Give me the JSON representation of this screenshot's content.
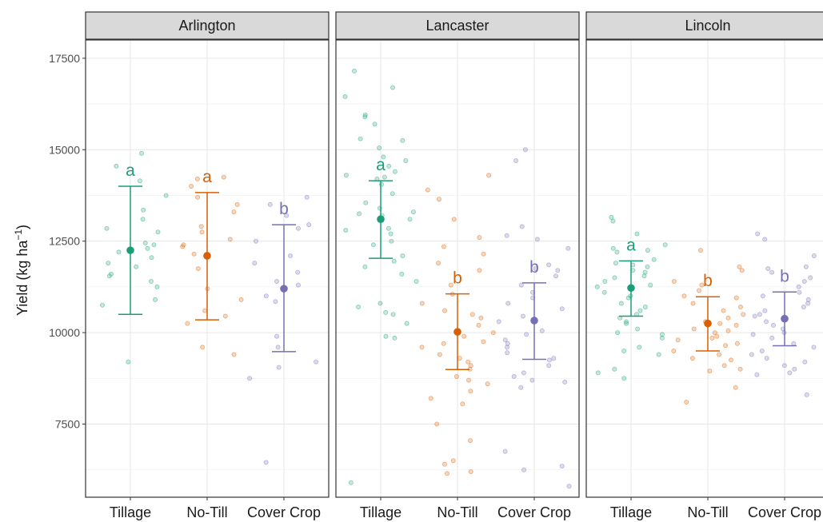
{
  "chart_data": {
    "type": "scatter",
    "ylabel": "Yield (kg ha",
    "ylabel_sup": "−1",
    "ylabel_close": ")",
    "ylim": [
      5500,
      18000
    ],
    "y_ticks": [
      7500,
      10000,
      12500,
      15000,
      17500
    ],
    "y_tick_labels": [
      "7500",
      "10000",
      "12500",
      "15000",
      "17500"
    ],
    "categories": [
      "Tillage",
      "No-Till",
      "Cover Crop"
    ],
    "colors": {
      "Tillage": "#1b9e77",
      "No-Till": "#d95f02",
      "Cover Crop": "#7570b3"
    },
    "grid": true,
    "panels": [
      {
        "name": "Arlington",
        "summary": [
          {
            "category": "Tillage",
            "mean": 12250,
            "lower": 10500,
            "upper": 14000,
            "letter": "a"
          },
          {
            "category": "No-Till",
            "mean": 12100,
            "lower": 10350,
            "upper": 13830,
            "letter": "a"
          },
          {
            "category": "Cover Crop",
            "mean": 11200,
            "lower": 9480,
            "upper": 12950,
            "letter": "b"
          }
        ],
        "points": {
          "Tillage": [
            14900,
            14550,
            14150,
            13750,
            13350,
            13100,
            12850,
            12750,
            12450,
            12400,
            12300,
            12200,
            12050,
            11900,
            11800,
            11600,
            11550,
            11400,
            11250,
            10900,
            10750,
            9200
          ],
          "No-Till": [
            14250,
            14200,
            14000,
            13700,
            13500,
            13300,
            12900,
            12750,
            12550,
            12400,
            12350,
            12150,
            11750,
            11200,
            10900,
            10600,
            10450,
            10250,
            9600,
            9400
          ],
          "Cover Crop": [
            13700,
            13500,
            13200,
            12950,
            12850,
            12500,
            12100,
            11900,
            11650,
            11400,
            11300,
            11000,
            10850,
            9900,
            9600,
            9200,
            9050,
            8750,
            6450
          ]
        }
      },
      {
        "name": "Lancaster",
        "summary": [
          {
            "category": "Tillage",
            "mean": 13100,
            "lower": 12030,
            "upper": 14150,
            "letter": "a"
          },
          {
            "category": "No-Till",
            "mean": 10020,
            "lower": 8990,
            "upper": 11060,
            "letter": "b"
          },
          {
            "category": "Cover Crop",
            "mean": 10330,
            "lower": 9270,
            "upper": 11360,
            "letter": "b"
          }
        ],
        "points": {
          "Tillage": [
            17150,
            16700,
            16450,
            15950,
            15900,
            15700,
            15300,
            15250,
            15050,
            14800,
            14700,
            14550,
            14400,
            14300,
            14250,
            14200,
            14050,
            13800,
            13550,
            13400,
            13300,
            13250,
            13200,
            13100,
            12850,
            12800,
            12700,
            12500,
            12400,
            12100,
            11950,
            11800,
            11600,
            11400,
            10800,
            10700,
            10550,
            10500,
            10250,
            9900,
            9850,
            5900
          ],
          "No-Till": [
            14300,
            13900,
            13650,
            13100,
            12600,
            12350,
            12150,
            11900,
            11700,
            11300,
            11050,
            10800,
            10600,
            10500,
            10400,
            10200,
            10000,
            9900,
            9750,
            9700,
            9600,
            9400,
            9300,
            9200,
            9100,
            9000,
            8800,
            8700,
            8600,
            8400,
            8200,
            8050,
            7500,
            7050,
            6500,
            6400,
            6200,
            6150
          ],
          "Cover Crop": [
            15000,
            14700,
            12900,
            12650,
            12550,
            12300,
            11850,
            11750,
            11700,
            11550,
            11300,
            11100,
            10950,
            10800,
            10650,
            10450,
            10300,
            10050,
            9950,
            9800,
            9700,
            9600,
            9450,
            9300,
            9250,
            9100,
            8900,
            8800,
            8700,
            8650,
            8500,
            6750,
            6350,
            6250,
            5800
          ]
        }
      },
      {
        "name": "Lincoln",
        "summary": [
          {
            "category": "Tillage",
            "mean": 11220,
            "lower": 10450,
            "upper": 11960,
            "letter": "a"
          },
          {
            "category": "No-Till",
            "mean": 10250,
            "lower": 9500,
            "upper": 10980,
            "letter": "b"
          },
          {
            "category": "Cover Crop",
            "mean": 10380,
            "lower": 9640,
            "upper": 11110,
            "letter": "b"
          }
        ],
        "points": {
          "Tillage": [
            13150,
            13050,
            12700,
            12400,
            12300,
            12250,
            12200,
            12000,
            11900,
            11850,
            11800,
            11700,
            11650,
            11550,
            11500,
            11400,
            11300,
            11250,
            11100,
            11000,
            10950,
            10800,
            10700,
            10600,
            10500,
            10400,
            10300,
            10250,
            10100,
            10000,
            9950,
            9850,
            9600,
            9500,
            9400,
            9000,
            8900,
            8750
          ],
          "No-Till": [
            12250,
            11800,
            11700,
            11400,
            11300,
            11150,
            11000,
            10950,
            10800,
            10700,
            10600,
            10500,
            10400,
            10300,
            10250,
            10200,
            10100,
            10050,
            10000,
            9900,
            9850,
            9800,
            9700,
            9650,
            9500,
            9400,
            9300,
            9250,
            9100,
            9000,
            8950,
            8500,
            8100
          ],
          "Cover Crop": [
            12700,
            12550,
            12100,
            11800,
            11750,
            11650,
            11500,
            11400,
            11250,
            11100,
            11000,
            10900,
            10800,
            10700,
            10600,
            10500,
            10450,
            10300,
            10200,
            10100,
            10000,
            9950,
            9850,
            9700,
            9600,
            9500,
            9400,
            9300,
            9200,
            9100,
            9000,
            8900,
            8850,
            8300
          ]
        }
      }
    ]
  }
}
